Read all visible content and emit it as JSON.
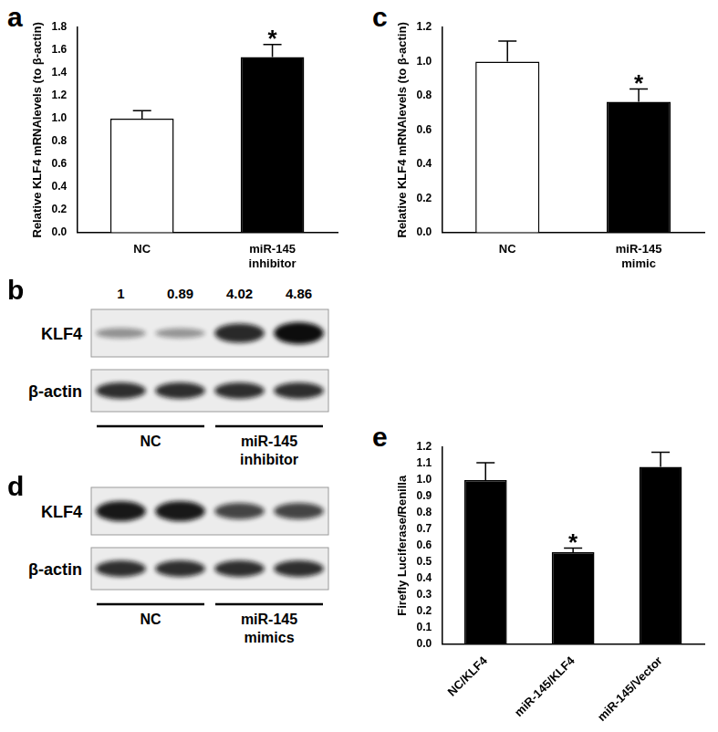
{
  "chart_data": [
    {
      "type": "bar",
      "title": "a",
      "categories": [
        "NC",
        "miR-145 inhibitor"
      ],
      "values": [
        1.0,
        1.54
      ],
      "errors": [
        0.07,
        0.11
      ],
      "colors": [
        "#ffffff",
        "#000000"
      ],
      "y_label": "Relative KLF4 mRNAlevels (to β-actin)",
      "ylim": [
        0,
        1.8
      ],
      "yticks": [
        {
          "value": 0,
          "label": "0.0"
        },
        0.2,
        0.4,
        0.6,
        0.8,
        {
          "value": 1,
          "label": "1.0"
        },
        1.2,
        1.4,
        1.6,
        1.8
      ],
      "grid": false,
      "annotations": [
        {
          "x": "miR-145 inhibitor",
          "text": "*"
        }
      ]
    },
    {
      "type": "bar",
      "title": "c",
      "categories": [
        "NC",
        "miR-145 mimic"
      ],
      "values": [
        1.0,
        0.765
      ],
      "errors": [
        0.12,
        0.075
      ],
      "colors": [
        "#ffffff",
        "#000000"
      ],
      "y_label": "Relative KLF4 mRNAlevels (to β-actin)",
      "ylim": [
        0,
        1.2
      ],
      "yticks": [
        {
          "value": 0,
          "label": "0.0"
        },
        0.2,
        0.4,
        0.6,
        0.8,
        {
          "value": 1,
          "label": "1.0"
        },
        1.2
      ],
      "grid": false,
      "annotations": [
        {
          "x": "miR-145 mimic",
          "text": "*"
        }
      ]
    },
    {
      "type": "bar",
      "title": "e",
      "categories": [
        "NC/KLF4",
        "miR-145/KLF4",
        "miR-145/Vector"
      ],
      "values": [
        1.0,
        0.56,
        1.08
      ],
      "errors": [
        0.105,
        0.025,
        0.09
      ],
      "colors": [
        "#000000",
        "#000000",
        "#000000"
      ],
      "y_label": "Firefly Luciferase/Renilla",
      "ylim": [
        0,
        1.2
      ],
      "yticks": [
        {
          "value": 0,
          "label": "0.0"
        },
        0.1,
        0.2,
        0.3,
        0.4,
        0.5,
        0.6,
        0.7,
        0.8,
        0.9,
        {
          "value": 1,
          "label": "1.0"
        },
        1.1,
        1.2
      ],
      "grid": false,
      "annotations": [
        {
          "x": "miR-145/KLF4",
          "text": "*"
        }
      ]
    }
  ],
  "blots": [
    {
      "title": "b",
      "rows": [
        "KLF4",
        "β-actin"
      ],
      "groups": [
        "NC",
        "miR-145 inhibitor"
      ],
      "densities": [
        1,
        0.89,
        4.02,
        4.86
      ]
    },
    {
      "title": "d",
      "rows": [
        "KLF4",
        "β-actin"
      ],
      "groups": [
        "NC",
        "miR-145 mimics"
      ]
    }
  ]
}
